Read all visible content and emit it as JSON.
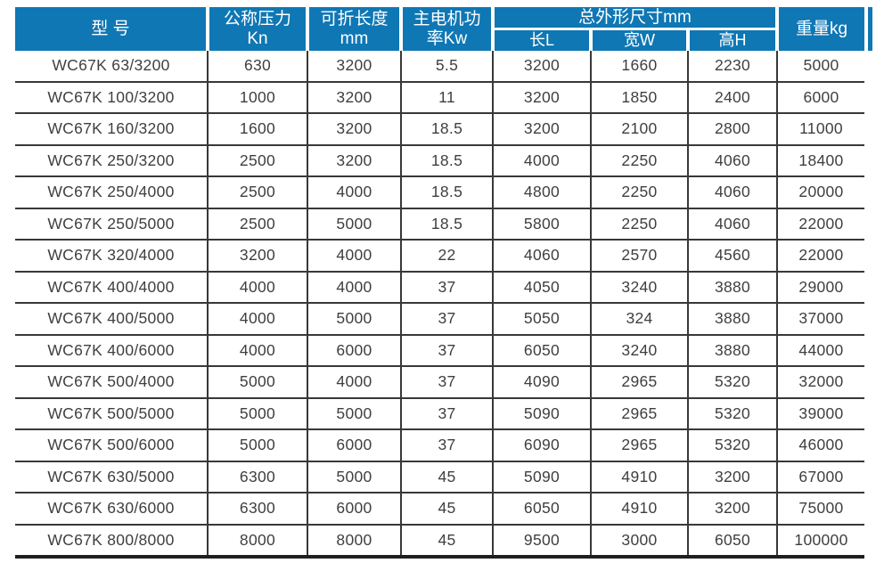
{
  "table": {
    "headers": {
      "model": "型 号",
      "pressure_line1": "公称压力",
      "pressure_line2": "Kn",
      "fold_length_line1": "可折长度",
      "fold_length_line2": "mm",
      "motor_power_line1": "主电机功",
      "motor_power_line2": "率Kw",
      "dimensions_group": "总外形尺寸mm",
      "dim_length": "长L",
      "dim_width": "宽W",
      "dim_height": "高H",
      "weight": "重量kg"
    },
    "rows": [
      [
        "WC67K 63/3200",
        "630",
        "3200",
        "5.5",
        "3200",
        "1660",
        "2230",
        "5000"
      ],
      [
        "WC67K 100/3200",
        "1000",
        "3200",
        "11",
        "3200",
        "1850",
        "2400",
        "6000"
      ],
      [
        "WC67K 160/3200",
        "1600",
        "3200",
        "18.5",
        "3200",
        "2100",
        "2800",
        "11000"
      ],
      [
        "WC67K 250/3200",
        "2500",
        "3200",
        "18.5",
        "4000",
        "2250",
        "4060",
        "18400"
      ],
      [
        "WC67K 250/4000",
        "2500",
        "4000",
        "18.5",
        "4800",
        "2250",
        "4060",
        "20000"
      ],
      [
        "WC67K 250/5000",
        "2500",
        "5000",
        "18.5",
        "5800",
        "2250",
        "4060",
        "22000"
      ],
      [
        "WC67K 320/4000",
        "3200",
        "4000",
        "22",
        "4060",
        "2570",
        "4560",
        "22000"
      ],
      [
        "WC67K 400/4000",
        "4000",
        "4000",
        "37",
        "4050",
        "3240",
        "3880",
        "29000"
      ],
      [
        "WC67K 400/5000",
        "4000",
        "5000",
        "37",
        "5050",
        "324",
        "3880",
        "37000"
      ],
      [
        "WC67K 400/6000",
        "4000",
        "6000",
        "37",
        "6050",
        "3240",
        "3880",
        "44000"
      ],
      [
        "WC67K 500/4000",
        "5000",
        "4000",
        "37",
        "4090",
        "2965",
        "5320",
        "32000"
      ],
      [
        "WC67K 500/5000",
        "5000",
        "5000",
        "37",
        "5090",
        "2965",
        "5320",
        "39000"
      ],
      [
        "WC67K 500/6000",
        "5000",
        "6000",
        "37",
        "6090",
        "2965",
        "5320",
        "46000"
      ],
      [
        "WC67K 630/5000",
        "6300",
        "5000",
        "45",
        "5090",
        "4910",
        "3200",
        "67000"
      ],
      [
        "WC67K 630/6000",
        "6300",
        "6000",
        "45",
        "6050",
        "4910",
        "3200",
        "75000"
      ],
      [
        "WC67K 800/8000",
        "8000",
        "8000",
        "45",
        "9500",
        "3000",
        "6050",
        "100000"
      ]
    ]
  },
  "colors": {
    "header_background": "#0f77b4",
    "header_text": "#ffffff",
    "grid_line": "#383838",
    "bottom_border": "#1f1f1f",
    "body_text": "#3f3f3f"
  }
}
